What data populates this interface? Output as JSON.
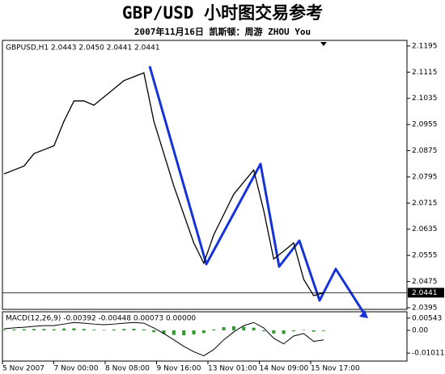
{
  "header": {
    "title": "GBP/USD 小时图交易参考",
    "subtitle": "2007年11月16日  凯斯顿：周游 ZHOU You"
  },
  "chart_data": [
    {
      "type": "line",
      "title": "GBPUSD,H1 2.0443 2.0450 2.0441 2.0441",
      "color": "#000000",
      "values": [
        2.0804,
        2.0816,
        2.0828,
        2.0866,
        2.0878,
        2.089,
        2.0965,
        2.1027,
        2.1027,
        2.1014,
        2.1039,
        2.1064,
        2.1089,
        2.1101,
        2.1113,
        2.0965,
        2.0866,
        2.0767,
        2.068,
        2.0593,
        2.0531,
        2.0618,
        2.068,
        2.0742,
        2.0779,
        2.0816,
        2.0692,
        2.0544,
        2.0568,
        2.0593,
        2.0482,
        2.0432,
        2.0441
      ],
      "ylim": [
        2.039,
        2.1212
      ],
      "yticks": [
        2.1195,
        2.1115,
        2.1035,
        2.0955,
        2.0875,
        2.0795,
        2.0715,
        2.0635,
        2.0555,
        2.0475,
        2.0395
      ],
      "current_price": 2.0441,
      "x_labels": [
        "5 Nov 2007",
        "7 Nov 00:00",
        "8 Nov 08:00",
        "9 Nov 16:00",
        "13 Nov 01:00",
        "14 Nov 09:00",
        "15 Nov 17:00"
      ]
    },
    {
      "type": "macd",
      "title": "MACD(12,26,9) -0.00392 -0.00448 0.00073 0.00000",
      "series": [
        {
          "color": "#2e9a2e",
          "values": [
            0.0003,
            0.0004,
            0.0005,
            0.0006,
            0.0006,
            0.0005,
            0.0008,
            0.0009,
            0.0006,
            0.0003,
            0.0002,
            0.0004,
            0.0006,
            0.0007,
            0.0004,
            -0.0008,
            -0.0016,
            -0.002,
            -0.0022,
            -0.0018,
            -0.0012,
            0.0004,
            0.0014,
            0.0018,
            0.0016,
            0.0012,
            -0.0004,
            -0.0014,
            -0.0016,
            -0.0004,
            0.0002,
            -0.0006,
            -0.0003
          ]
        },
        {
          "color": "#000000",
          "values": [
            0.0007,
            0.0011,
            0.0014,
            0.0018,
            0.0021,
            0.0021,
            0.0028,
            0.0035,
            0.0032,
            0.0028,
            0.0025,
            0.0028,
            0.0032,
            0.0035,
            0.0032,
            0.0011,
            -0.0014,
            -0.0042,
            -0.0071,
            -0.0095,
            -0.0113,
            -0.0085,
            -0.0042,
            -0.0007,
            0.0021,
            0.0035,
            0.0011,
            -0.0035,
            -0.006,
            -0.0025,
            -0.0014,
            -0.0049,
            -0.0042
          ]
        }
      ],
      "ylim": [
        -0.01364,
        0.00825
      ],
      "yticks": [
        0.00543,
        {
          "value": 0,
          "label": "0.00"
        },
        -0.01011
      ]
    }
  ]
}
